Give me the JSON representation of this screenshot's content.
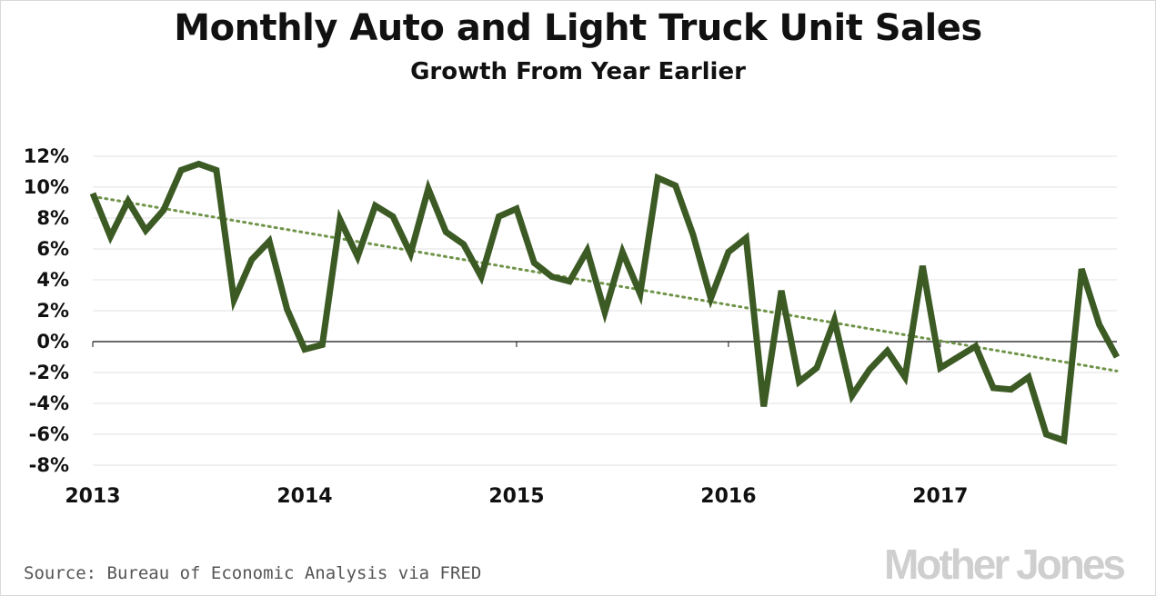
{
  "title": "Monthly Auto and Light Truck Unit Sales",
  "subtitle": "Growth From Year Earlier",
  "source": "Source: Bureau of Economic Analysis via FRED",
  "logo": "Mother Jones",
  "colors": {
    "line": "#3c5a24",
    "trend": "#6f9448",
    "grid": "#e2e2e2",
    "axis": "#111111"
  },
  "chart_data": {
    "type": "line",
    "title": "Monthly Auto and Light Truck Unit Sales",
    "subtitle": "Growth From Year Earlier",
    "xlabel": "",
    "ylabel": "",
    "ylim": [
      -8,
      12
    ],
    "yticks": [
      12,
      10,
      8,
      6,
      4,
      2,
      0,
      -2,
      -4,
      -6,
      -8
    ],
    "ytick_labels": [
      "12%",
      "10%",
      "8%",
      "6%",
      "4%",
      "2%",
      "0%",
      "-2%",
      "-4%",
      "-6%",
      "-8%"
    ],
    "xticks": [
      "2013",
      "2014",
      "2015",
      "2016",
      "2017"
    ],
    "x_start": "2013-01",
    "grid": true,
    "series": [
      {
        "style": "solid",
        "values": [
          9.6,
          6.8,
          9.1,
          7.2,
          8.5,
          11.1,
          11.5,
          11.1,
          2.7,
          5.3,
          6.5,
          2.1,
          -0.5,
          -0.2,
          7.9,
          5.5,
          8.8,
          8.1,
          5.7,
          9.9,
          7.1,
          6.3,
          4.2,
          8.1,
          8.6,
          5.1,
          4.2,
          3.9,
          5.9,
          1.9,
          5.8,
          3.1,
          10.6,
          10.1,
          6.9,
          2.8,
          5.8,
          6.7,
          -4.2,
          3.3,
          -2.6,
          -1.7,
          1.4,
          -3.5,
          -1.8,
          -0.6,
          -2.3,
          4.9,
          -1.7,
          -1.0,
          -0.3,
          -3.0,
          -3.1,
          -2.3,
          -6.0,
          -6.4,
          4.7,
          1.1,
          -1.0
        ]
      },
      {
        "style": "dotted",
        "values": [
          9.4,
          -1.9
        ]
      }
    ]
  }
}
